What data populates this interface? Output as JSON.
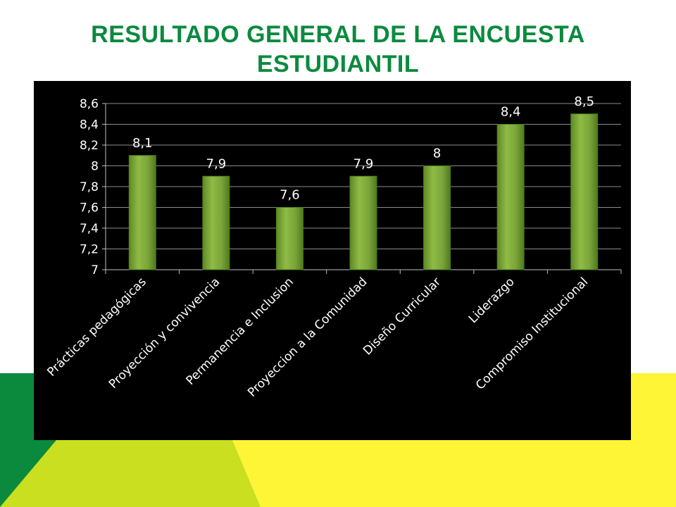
{
  "slide": {
    "title_line1": "RESULTADO GENERAL DE LA ENCUESTA",
    "title_line2": "ESTUDIANTIL"
  },
  "colors": {
    "title": "#0b8a3e",
    "bar": "#7aa53a",
    "bar_edge": "#4f7a1c",
    "bg_green": "#0b8a3e",
    "bg_lime": "#c9df1f",
    "bg_yellow": "#fdf536",
    "panel": "#000000",
    "text": "#ffffff"
  },
  "chart_data": {
    "type": "bar",
    "title": "",
    "xlabel": "",
    "ylabel": "",
    "categories": [
      "Prácticas pedagógicas",
      "Proyección y convivencia",
      "Permanencia e Inclusion",
      "Proyeccion a la Comunidad",
      "Diseño Curricular",
      "Liderazgo",
      "Compromiso Institucional"
    ],
    "values": [
      8.1,
      7.9,
      7.6,
      7.9,
      8.0,
      8.4,
      8.5
    ],
    "data_labels": [
      "8,1",
      "7,9",
      "7,6",
      "7,9",
      "8",
      "8,4",
      "8,5"
    ],
    "ylim": [
      7,
      8.6
    ],
    "yticks": [
      7,
      7.2,
      7.4,
      7.6,
      7.8,
      8,
      8.2,
      8.4,
      8.6
    ],
    "ytick_labels": [
      "7",
      "7,2",
      "7,4",
      "7,6",
      "7,8",
      "8",
      "8,2",
      "8,4",
      "8,6"
    ],
    "grid": true,
    "legend": "none"
  }
}
